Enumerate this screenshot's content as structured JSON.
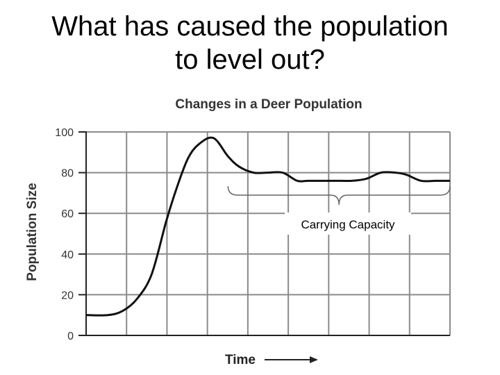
{
  "slide": {
    "title_lines": [
      "What has caused the population",
      "to level out?"
    ]
  },
  "chart_data": {
    "type": "line",
    "title": "Changes in a Deer Population",
    "xlabel": "Time",
    "ylabel": "Population Size",
    "ylim": [
      0,
      100
    ],
    "yticks": [
      0,
      20,
      40,
      60,
      80,
      100
    ],
    "xlim": [
      0,
      100
    ],
    "grid": true,
    "series": [
      {
        "x": [
          0,
          6,
          10,
          14,
          18,
          22,
          25,
          28,
          31,
          35,
          39,
          42,
          46,
          50,
          54,
          58,
          61,
          65,
          69,
          73,
          77,
          81,
          85,
          88,
          92,
          96,
          98,
          100
        ],
        "y": [
          10,
          10,
          12,
          18,
          30,
          56,
          73,
          87,
          94,
          97,
          88,
          83,
          80,
          80,
          80,
          76,
          76,
          76,
          76,
          76,
          77,
          80,
          80,
          79,
          76,
          76,
          76,
          76
        ]
      }
    ],
    "annotation": {
      "label": "Carrying Capacity",
      "x_range": [
        39,
        100
      ]
    },
    "colors": {
      "line": "#111111",
      "grid": "#8a8a8a",
      "axis": "#222222",
      "brace": "#666666"
    }
  }
}
